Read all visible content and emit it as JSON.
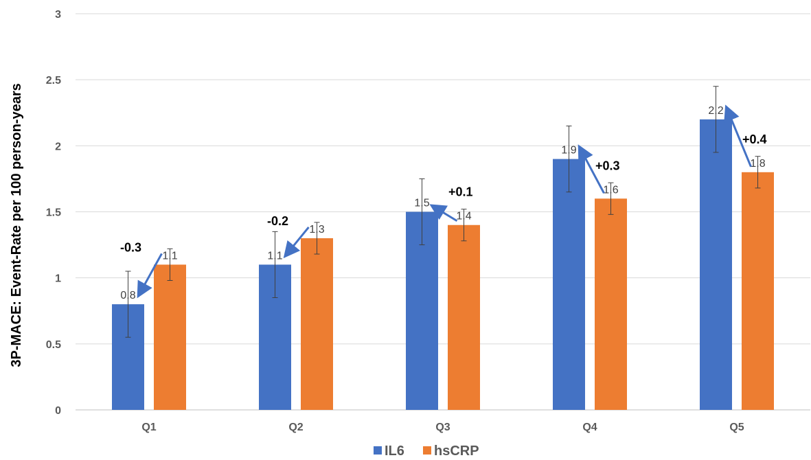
{
  "chart_data": {
    "type": "bar",
    "title": "",
    "xlabel": "",
    "ylabel": "3P-MACE: Event-Rate per 100 person-years",
    "ylim": [
      0,
      3
    ],
    "yticks": [
      "0",
      "0.5",
      "1",
      "1.5",
      "2",
      "2.5",
      "3"
    ],
    "categories": [
      "Q1",
      "Q2",
      "Q3",
      "Q4",
      "Q5"
    ],
    "series": [
      {
        "name": "IL6",
        "color": "#4472C4",
        "values": [
          0.8,
          1.1,
          1.5,
          1.9,
          2.2
        ],
        "value_labels": [
          "0.8",
          "1.1",
          "1.5",
          "1.9",
          "2.2"
        ],
        "error": [
          0.25,
          0.25,
          0.25,
          0.25,
          0.25
        ]
      },
      {
        "name": "hsCRP",
        "color": "#ED7D31",
        "values": [
          1.1,
          1.3,
          1.4,
          1.6,
          1.8
        ],
        "value_labels": [
          "1.1",
          "1.3",
          "1.4",
          "1.6",
          "1.8"
        ],
        "error": [
          0.12,
          0.12,
          0.12,
          0.12,
          0.12
        ]
      }
    ],
    "annotations": [
      "-0.3",
      "-0.2",
      "+0.1",
      "+0.3",
      "+0.4"
    ],
    "arrow_color": "#4472C4",
    "grid": true,
    "legend": "bottom"
  }
}
